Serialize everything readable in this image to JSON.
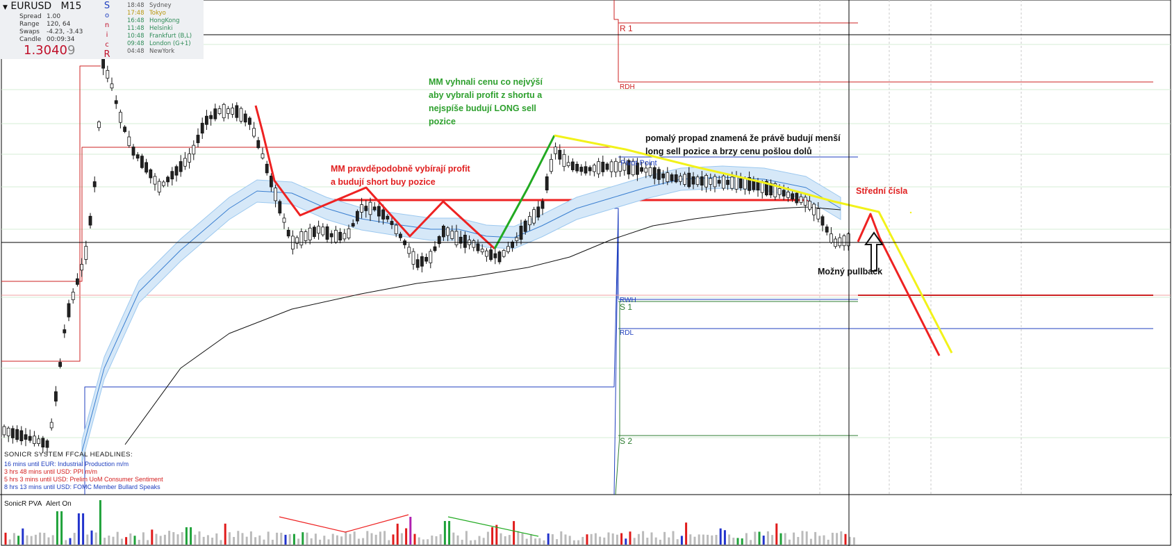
{
  "header": {
    "symbol": "EURUSD",
    "timeframe": "M15",
    "spread_label": "Spread",
    "spread_value": "1.00",
    "range_label": "Range",
    "range_value": "120, 64",
    "swaps_label": "Swaps",
    "swaps_value": "-4.23, -3.43",
    "candle_label": "Candle",
    "candle_value": "00:09:34",
    "price_main": "1.3040",
    "price_last": "9",
    "sonic_letters": [
      "S",
      "o",
      "n",
      "i",
      "c",
      "R"
    ],
    "sessions": [
      {
        "time": "18:48",
        "name": "Sydney",
        "color": "#555555"
      },
      {
        "time": "17:48",
        "name": "Tokyo",
        "color": "#b7950b"
      },
      {
        "time": "16:48",
        "name": "HongKong",
        "color": "#2e8b57"
      },
      {
        "time": "11:48",
        "name": "Helsinki",
        "color": "#2e8b57"
      },
      {
        "time": "10:48",
        "name": "Frankfurt (B,L)",
        "color": "#2e8b57"
      },
      {
        "time": "09:48",
        "name": "London (G+1)",
        "color": "#2e8b57"
      },
      {
        "time": "04:48",
        "name": "NewYork",
        "color": "#555555"
      }
    ]
  },
  "levels": {
    "r1": "R 1",
    "rdh": "RDH",
    "pivot": "Pivot Point",
    "rwh": "RWH",
    "s1": "S 1",
    "rdl": "RDL",
    "s2": "S 2"
  },
  "annotations": {
    "mm_high_1": "MM vyhnali cenu co nejvýší",
    "mm_high_2": "aby vybrali profit z shortu a",
    "mm_high_3": "nejspíše budují LONG sell",
    "mm_high_4": "pozice",
    "mm_profit_1": "MM pravděpodobně vybírají profit",
    "mm_profit_2": "a budují short buy pozice",
    "slow_drop_1": "pomalý propad znamená že právě budují menší",
    "slow_drop_2": "long sell pozice a brzy cenu pošlou dolů",
    "middle_numbers": "Střední čísla",
    "possible_pullback": "Možný pullback"
  },
  "news": {
    "title": "SONICR SYSTEM  FFCAL HEADLINES:",
    "items": [
      {
        "text": "16 mins until EUR: Industrial Production m/m",
        "color": "#1f3fbf"
      },
      {
        "text": "3 hrs 48 mins until USD: PPI m/m",
        "color": "#d42020"
      },
      {
        "text": "5 hrs 3 mins until USD: Prelim UoM Consumer Sentiment",
        "color": "#d42020"
      },
      {
        "text": "8 hrs 13 mins until USD: FOMC Member Bullard Speaks",
        "color": "#1f3fbf"
      }
    ]
  },
  "volume_panel": {
    "title": "SonicR PVA",
    "alert": "Alert On"
  },
  "colors": {
    "candle_bull": "#ffffff",
    "candle_bear": "#222222",
    "ema_band": "#9cc8ef",
    "ema_line": "#3a7fd0",
    "sma_line": "#111111",
    "resistance": "#cc2222",
    "support_green": "#2e7d32",
    "pivot_blue": "#1f3fbf",
    "trend_red": "#ee2222",
    "trend_green": "#22aa22",
    "trend_yellow": "#f2f21a",
    "vol_normal": "#bbbbbb",
    "vol_green": "#1fa23a",
    "vol_blue": "#2233cc",
    "vol_red": "#e01b1b",
    "vol_magenta": "#b020b0"
  },
  "chart_data": {
    "type": "candlestick",
    "symbol": "EURUSD",
    "timeframe": "M15",
    "current_price": 1.30409,
    "overlays": [
      "EMA band",
      "EMA",
      "SMA",
      "pivot levels"
    ],
    "volume_indicator": "SonicR PVA",
    "volume_colors_meaning": "grey normal, green/blue/red/magenta climax"
  }
}
